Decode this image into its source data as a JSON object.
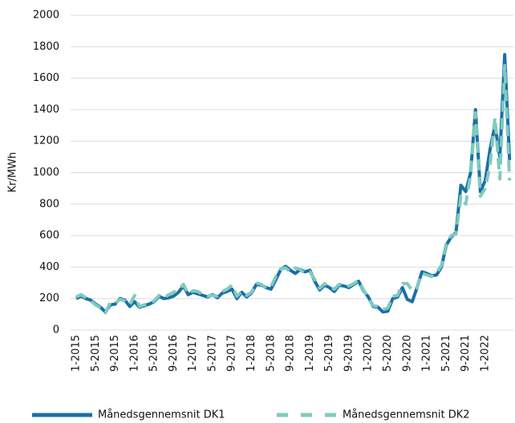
{
  "chart_data": {
    "type": "line",
    "y_label": "Kr/MWh",
    "categories": [
      "1-2015",
      null,
      null,
      null,
      "5-2015",
      null,
      null,
      null,
      "9-2015",
      null,
      null,
      null,
      "1-2016",
      null,
      null,
      null,
      "5-2016",
      null,
      null,
      null,
      "9-2016",
      null,
      null,
      null,
      "1-2017",
      null,
      null,
      null,
      "5-2017",
      null,
      null,
      null,
      "9-2017",
      null,
      null,
      null,
      "1-2018",
      null,
      null,
      null,
      "5-2018",
      null,
      null,
      null,
      "9-2018",
      null,
      null,
      null,
      "1-2019",
      null,
      null,
      null,
      "5-2019",
      null,
      null,
      null,
      "9-2019",
      null,
      null,
      null,
      "1-2020",
      null,
      null,
      null,
      "5-2020",
      null,
      null,
      null,
      "9-2020",
      null,
      null,
      null,
      "1-2021",
      null,
      null,
      null,
      "5-2021",
      null,
      null,
      null,
      "9-2021",
      null,
      null,
      null,
      "1-2022",
      null,
      null,
      null,
      null,
      null
    ],
    "series": [
      {
        "name": "Månedsgennemsnit DK1",
        "color": "#1b6fa8",
        "dashed": false,
        "values": [
          200,
          215,
          200,
          190,
          165,
          145,
          115,
          160,
          165,
          200,
          190,
          150,
          180,
          145,
          155,
          165,
          180,
          215,
          200,
          205,
          215,
          240,
          280,
          225,
          240,
          230,
          220,
          210,
          225,
          205,
          235,
          245,
          260,
          200,
          240,
          210,
          235,
          290,
          285,
          270,
          260,
          320,
          385,
          405,
          380,
          360,
          385,
          370,
          380,
          310,
          255,
          285,
          270,
          245,
          285,
          280,
          270,
          290,
          310,
          250,
          210,
          150,
          145,
          115,
          120,
          200,
          210,
          270,
          195,
          180,
          270,
          370,
          360,
          345,
          350,
          400,
          540,
          590,
          620,
          920,
          880,
          1000,
          1400,
          880,
          950,
          1150,
          1300,
          1100,
          1750,
          1080
        ]
      },
      {
        "name": "Månedsgennemsnit DK2",
        "color": "#7fcbbe",
        "dashed": true,
        "values": [
          210,
          225,
          205,
          185,
          160,
          140,
          110,
          175,
          170,
          195,
          185,
          160,
          220,
          150,
          160,
          170,
          185,
          220,
          205,
          225,
          240,
          255,
          290,
          230,
          250,
          245,
          225,
          215,
          220,
          215,
          245,
          260,
          285,
          215,
          245,
          220,
          240,
          300,
          290,
          265,
          275,
          340,
          390,
          395,
          370,
          395,
          385,
          360,
          370,
          320,
          265,
          295,
          275,
          260,
          290,
          290,
          280,
          295,
          315,
          255,
          200,
          155,
          150,
          130,
          140,
          215,
          220,
          295,
          295,
          250,
          270,
          360,
          350,
          340,
          365,
          410,
          550,
          600,
          610,
          850,
          800,
          990,
          1380,
          850,
          900,
          1050,
          1350,
          960,
          1680,
          950
        ]
      }
    ],
    "ylim": [
      0,
      2000
    ],
    "yticks": [
      0,
      200,
      400,
      600,
      800,
      1000,
      1200,
      1400,
      1600,
      1800,
      2000
    ],
    "grid": true,
    "legend": "bottom"
  }
}
